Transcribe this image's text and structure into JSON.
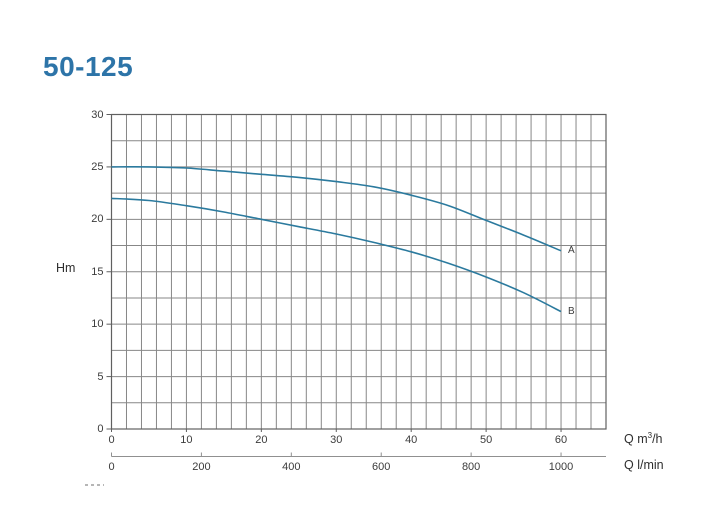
{
  "page": {
    "title": "50-125"
  },
  "chart_data": {
    "type": "line",
    "title": "50-125",
    "grid": "on",
    "legend_position": "curve-end-labels",
    "y_axis": {
      "label": "Hm",
      "range": [
        0,
        30
      ],
      "grid_step": 2.5,
      "ticks": [
        30,
        25,
        20,
        15,
        10,
        5,
        0
      ]
    },
    "x_axis_primary": {
      "label_prefix": "Q m",
      "label_sup": "3",
      "label_suffix": "/h",
      "unit": "m3/h",
      "range": [
        0,
        66
      ],
      "grid_step": 2,
      "ticks": [
        0,
        10,
        20,
        30,
        40,
        50,
        60
      ]
    },
    "x_axis_secondary": {
      "label": "Q l/min",
      "unit": "l/min",
      "ticks": [
        0,
        200,
        400,
        600,
        800,
        1000
      ],
      "aligned_equivalence": "1000 l/min = 60 m3/h"
    },
    "series": [
      {
        "name": "A",
        "x": [
          0,
          5,
          10,
          15,
          20,
          25,
          30,
          35,
          40,
          45,
          50,
          55,
          60
        ],
        "y": [
          25,
          25,
          24.9,
          24.6,
          24.3,
          24.0,
          23.6,
          23.1,
          22.3,
          21.3,
          19.9,
          18.5,
          17.0
        ]
      },
      {
        "name": "B",
        "x": [
          0,
          5,
          10,
          15,
          20,
          25,
          30,
          35,
          40,
          45,
          50,
          55,
          60
        ],
        "y": [
          22,
          21.8,
          21.3,
          20.7,
          20.0,
          19.3,
          18.6,
          17.8,
          16.9,
          15.8,
          14.5,
          13.0,
          11.2
        ]
      }
    ],
    "colors": {
      "curve": "#2b7a9e",
      "grid": "#878787",
      "border": "#606060",
      "title": "#2d74a8",
      "text": "#3c3c3c",
      "secondary_axis": "#909090"
    }
  }
}
